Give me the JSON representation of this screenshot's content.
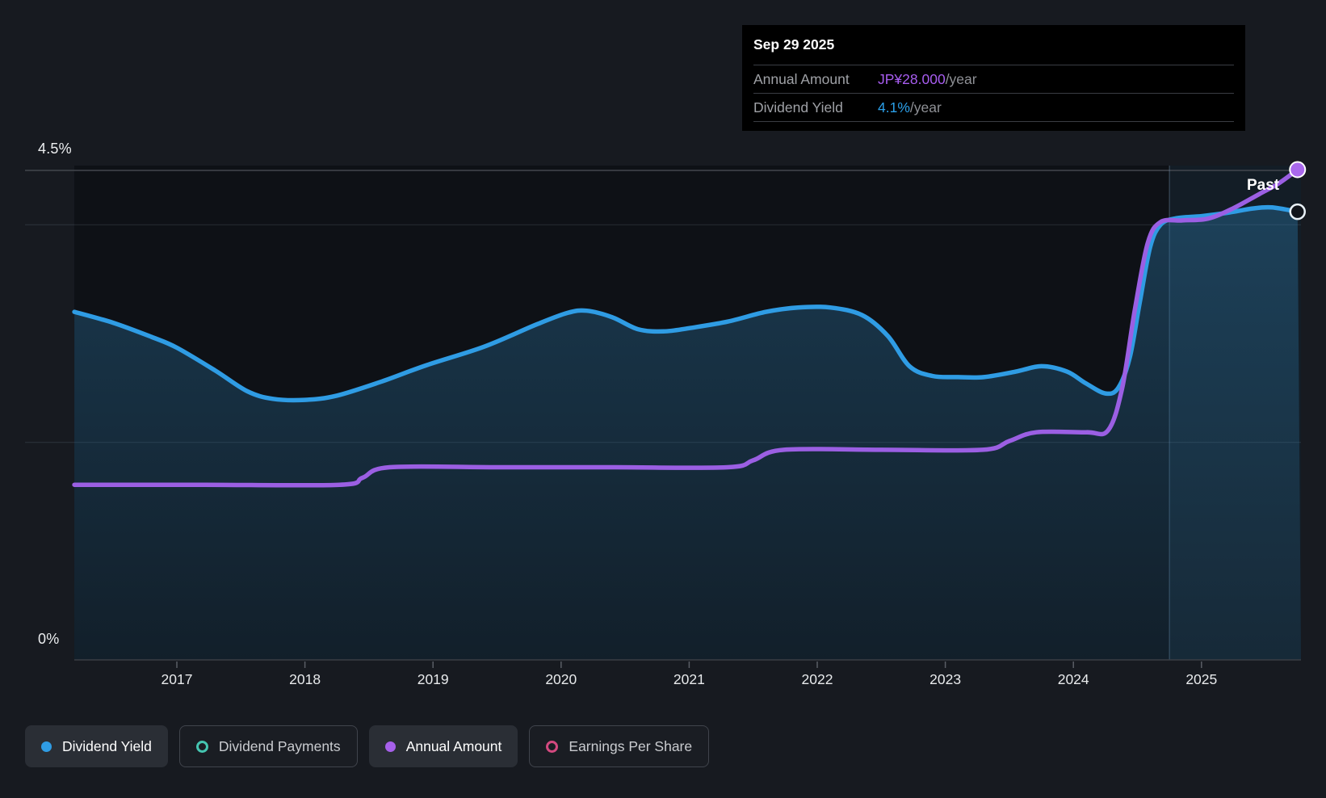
{
  "tooltip": {
    "date": "Sep 29 2025",
    "rows": [
      {
        "label": "Annual Amount",
        "value": "JP¥28.000",
        "suffix": "/year",
        "value_color": "#a85df0"
      },
      {
        "label": "Dividend Yield",
        "value": "4.1%",
        "suffix": "/year",
        "value_color": "#2b9fe8"
      }
    ]
  },
  "axis": {
    "y_max_label": "4.5%",
    "y_min_label": "0%",
    "x_labels": [
      "2017",
      "2018",
      "2019",
      "2020",
      "2021",
      "2022",
      "2023",
      "2024",
      "2025"
    ]
  },
  "annotations": {
    "past_label": "Past"
  },
  "legend": [
    {
      "label": "Dividend Yield",
      "marker": "filled",
      "color": "#2f9ce4",
      "active": true
    },
    {
      "label": "Dividend Payments",
      "marker": "hollow",
      "color": "#45c4b0",
      "active": false
    },
    {
      "label": "Annual Amount",
      "marker": "filled",
      "color": "#a660ea",
      "active": true
    },
    {
      "label": "Earnings Per Share",
      "marker": "hollow",
      "color": "#d3497f",
      "active": false
    }
  ],
  "chart_data": {
    "type": "line",
    "title": "Dividend yield and annual dividend amount history",
    "x_axis": {
      "unit": "year",
      "ticks": [
        2017,
        2018,
        2019,
        2020,
        2021,
        2022,
        2023,
        2024,
        2025
      ],
      "range": [
        2016.2,
        2025.78
      ]
    },
    "y_axis_yield": {
      "unit": "%",
      "range": [
        0,
        4.5
      ],
      "gridlines_pct": [
        4.5,
        4.0,
        2.0
      ],
      "labeled": [
        4.5,
        0
      ]
    },
    "y_axis_amount": {
      "unit": "JP¥/year",
      "range": [
        0,
        28.2
      ]
    },
    "past_divider_year": 2024.75,
    "end_marker_year": 2025.75,
    "legend_position": "bottom",
    "series": [
      {
        "name": "Dividend Yield",
        "unit": "%",
        "color": "#2f9ce4",
        "style": "area",
        "end_value": 4.1,
        "points": [
          [
            2016.2,
            3.2
          ],
          [
            2016.5,
            3.1
          ],
          [
            2016.8,
            2.97
          ],
          [
            2017.0,
            2.87
          ],
          [
            2017.3,
            2.66
          ],
          [
            2017.55,
            2.47
          ],
          [
            2017.75,
            2.4
          ],
          [
            2018.0,
            2.39
          ],
          [
            2018.25,
            2.43
          ],
          [
            2018.6,
            2.56
          ],
          [
            2018.95,
            2.71
          ],
          [
            2019.4,
            2.88
          ],
          [
            2019.8,
            3.08
          ],
          [
            2020.05,
            3.19
          ],
          [
            2020.2,
            3.21
          ],
          [
            2020.4,
            3.15
          ],
          [
            2020.6,
            3.04
          ],
          [
            2020.8,
            3.02
          ],
          [
            2021.0,
            3.05
          ],
          [
            2021.3,
            3.11
          ],
          [
            2021.6,
            3.2
          ],
          [
            2021.85,
            3.24
          ],
          [
            2022.1,
            3.24
          ],
          [
            2022.35,
            3.17
          ],
          [
            2022.55,
            2.98
          ],
          [
            2022.72,
            2.7
          ],
          [
            2022.9,
            2.61
          ],
          [
            2023.1,
            2.6
          ],
          [
            2023.3,
            2.6
          ],
          [
            2023.55,
            2.65
          ],
          [
            2023.75,
            2.7
          ],
          [
            2023.95,
            2.65
          ],
          [
            2024.1,
            2.54
          ],
          [
            2024.25,
            2.45
          ],
          [
            2024.35,
            2.5
          ],
          [
            2024.44,
            2.78
          ],
          [
            2024.52,
            3.3
          ],
          [
            2024.6,
            3.8
          ],
          [
            2024.68,
            4.0
          ],
          [
            2024.8,
            4.06
          ],
          [
            2025.0,
            4.08
          ],
          [
            2025.2,
            4.11
          ],
          [
            2025.4,
            4.15
          ],
          [
            2025.55,
            4.16
          ],
          [
            2025.75,
            4.12
          ]
        ]
      },
      {
        "name": "Annual Amount",
        "unit": "JP¥/year",
        "color": "#9b5fe3",
        "style": "line",
        "end_value": 28.0,
        "points": [
          [
            2016.2,
            10
          ],
          [
            2017.2,
            10
          ],
          [
            2018.27,
            10
          ],
          [
            2018.45,
            10.4
          ],
          [
            2018.66,
            11
          ],
          [
            2019.5,
            11
          ],
          [
            2020.4,
            11
          ],
          [
            2021.3,
            11
          ],
          [
            2021.5,
            11.4
          ],
          [
            2021.74,
            12
          ],
          [
            2022.5,
            12
          ],
          [
            2023.29,
            12
          ],
          [
            2023.5,
            12.5
          ],
          [
            2023.71,
            13
          ],
          [
            2024.1,
            13
          ],
          [
            2024.27,
            13.1
          ],
          [
            2024.38,
            15.5
          ],
          [
            2024.48,
            20.0
          ],
          [
            2024.58,
            23.8
          ],
          [
            2024.68,
            25.0
          ],
          [
            2024.85,
            25.1
          ],
          [
            2025.05,
            25.2
          ],
          [
            2025.25,
            25.8
          ],
          [
            2025.45,
            26.6
          ],
          [
            2025.6,
            27.2
          ],
          [
            2025.75,
            28.0
          ]
        ]
      }
    ]
  }
}
